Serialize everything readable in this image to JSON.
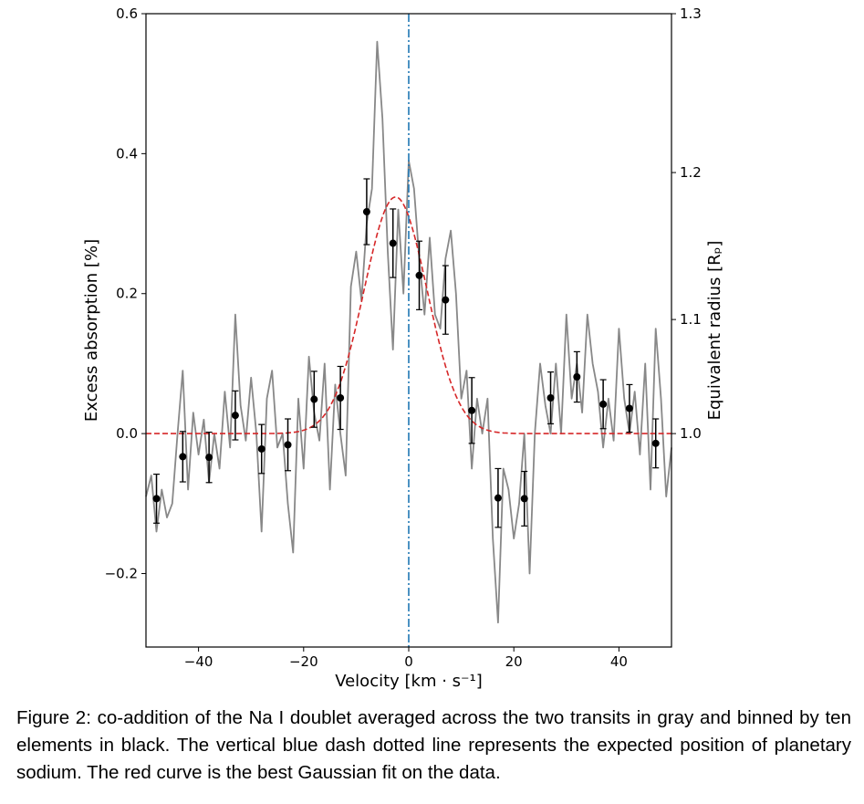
{
  "chart_data": {
    "type": "line",
    "xlabel": "Velocity [km · s⁻¹]",
    "ylabel": "Excess absorption [%]",
    "ylabel_right": "Equivalent radius [Rₚ]",
    "xlim": [
      -50,
      50
    ],
    "ylim": [
      -0.305,
      0.6
    ],
    "ylim_right_ticks": [
      {
        "value": 1.0,
        "label": "1.0",
        "at": 0.0
      },
      {
        "value": 1.1,
        "label": "1.1",
        "at": 0.163
      },
      {
        "value": 1.2,
        "label": "1.2",
        "at": 0.373
      },
      {
        "value": 1.3,
        "label": "1.3",
        "at": 0.6
      }
    ],
    "x_ticks": [
      -40,
      -20,
      0,
      20,
      40
    ],
    "x_tick_labels": [
      "−40",
      "−20",
      "0",
      "20",
      "40"
    ],
    "y_ticks": [
      -0.2,
      0.0,
      0.2,
      0.4,
      0.6
    ],
    "y_tick_labels": [
      "−0.2",
      "0.0",
      "0.2",
      "0.4",
      "0.6"
    ],
    "grid": false,
    "series": [
      {
        "kind": "raw",
        "color": "#888888",
        "x": [
          -50,
          -49,
          -48,
          -47,
          -46,
          -45,
          -44,
          -43,
          -42,
          -41,
          -40,
          -39,
          -38,
          -37,
          -36,
          -35,
          -34,
          -33,
          -32,
          -31,
          -30,
          -29,
          -28,
          -27,
          -26,
          -25,
          -24,
          -23,
          -22,
          -21,
          -20,
          -19,
          -18,
          -17,
          -16,
          -15,
          -14,
          -13,
          -12,
          -11,
          -10,
          -9,
          -8,
          -7,
          -6,
          -5,
          -4,
          -3,
          -2,
          -1,
          0,
          1,
          2,
          3,
          4,
          5,
          6,
          7,
          8,
          9,
          10,
          11,
          12,
          13,
          14,
          15,
          16,
          17,
          18,
          19,
          20,
          21,
          22,
          23,
          24,
          25,
          26,
          27,
          28,
          29,
          30,
          31,
          32,
          33,
          34,
          35,
          36,
          37,
          38,
          39,
          40,
          41,
          42,
          43,
          44,
          45,
          46,
          47,
          48,
          49,
          50
        ],
        "y": [
          -0.09,
          -0.06,
          -0.14,
          -0.08,
          -0.12,
          -0.1,
          0.0,
          0.09,
          -0.08,
          0.03,
          -0.03,
          0.02,
          -0.07,
          0.0,
          -0.05,
          0.06,
          -0.02,
          0.17,
          0.04,
          -0.01,
          0.08,
          0.0,
          -0.14,
          0.05,
          0.09,
          -0.02,
          0.0,
          -0.1,
          -0.17,
          0.05,
          -0.05,
          0.11,
          0.03,
          -0.01,
          0.1,
          -0.08,
          0.07,
          0.0,
          -0.06,
          0.21,
          0.26,
          0.19,
          0.3,
          0.35,
          0.56,
          0.45,
          0.26,
          0.12,
          0.32,
          0.2,
          0.39,
          0.35,
          0.25,
          0.17,
          0.28,
          0.17,
          0.15,
          0.25,
          0.29,
          0.2,
          0.05,
          0.09,
          -0.05,
          0.05,
          0.0,
          0.05,
          -0.15,
          -0.27,
          -0.05,
          -0.08,
          -0.15,
          -0.1,
          0.0,
          -0.2,
          0.0,
          0.1,
          0.04,
          0.0,
          0.1,
          0.0,
          0.17,
          0.05,
          0.1,
          0.03,
          0.17,
          0.1,
          0.06,
          -0.02,
          0.05,
          -0.01,
          0.15,
          0.05,
          0.0,
          0.06,
          -0.03,
          0.1,
          -0.08,
          0.15,
          0.05,
          -0.09,
          -0.02
        ]
      },
      {
        "kind": "binned",
        "color": "#000000",
        "x": [
          -48,
          -43,
          -38,
          -33,
          -28,
          -23,
          -18,
          -13,
          -8,
          -3,
          2,
          7,
          12,
          17,
          22,
          27,
          32,
          37,
          42,
          47
        ],
        "y": [
          -0.093,
          -0.033,
          -0.034,
          0.026,
          -0.022,
          -0.016,
          0.049,
          0.051,
          0.317,
          0.272,
          0.226,
          0.191,
          0.033,
          -0.092,
          -0.093,
          0.051,
          0.081,
          0.042,
          0.036,
          -0.014
        ],
        "err": [
          0.035,
          0.036,
          0.036,
          0.035,
          0.035,
          0.037,
          0.04,
          0.045,
          0.047,
          0.049,
          0.049,
          0.049,
          0.047,
          0.042,
          0.039,
          0.037,
          0.036,
          0.035,
          0.034,
          0.035
        ]
      },
      {
        "kind": "gaussian_fit",
        "color": "#d62728",
        "amplitude": 0.338,
        "center": -2.5,
        "sigma": 6.0
      }
    ],
    "annotations": [
      {
        "kind": "vertical_line",
        "x": 0,
        "color": "#1f77b4",
        "style": "dash-dot"
      }
    ]
  },
  "caption": "Figure 2: co-addition of the Na I doublet averaged across the two transits in gray and binned by ten elements in black. The vertical blue dash dotted line represents the expected position of planetary sodium. The red curve is the best Gaussian fit on the data."
}
